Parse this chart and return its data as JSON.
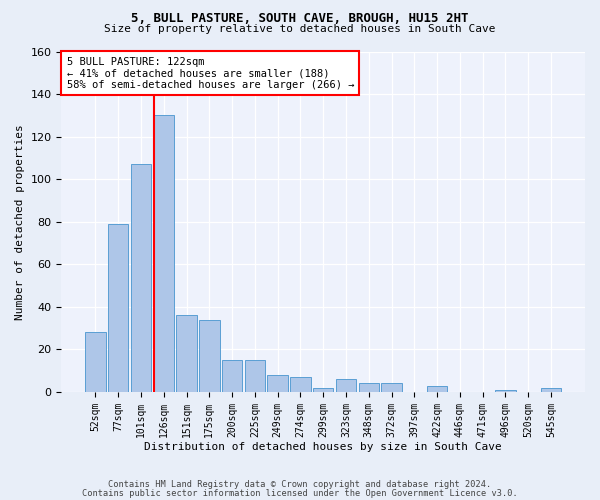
{
  "title1": "5, BULL PASTURE, SOUTH CAVE, BROUGH, HU15 2HT",
  "title2": "Size of property relative to detached houses in South Cave",
  "xlabel": "Distribution of detached houses by size in South Cave",
  "ylabel": "Number of detached properties",
  "bins": [
    "52sqm",
    "77sqm",
    "101sqm",
    "126sqm",
    "151sqm",
    "175sqm",
    "200sqm",
    "225sqm",
    "249sqm",
    "274sqm",
    "299sqm",
    "323sqm",
    "348sqm",
    "372sqm",
    "397sqm",
    "422sqm",
    "446sqm",
    "471sqm",
    "496sqm",
    "520sqm",
    "545sqm"
  ],
  "values": [
    28,
    79,
    107,
    130,
    36,
    34,
    15,
    15,
    8,
    7,
    2,
    6,
    4,
    4,
    0,
    3,
    0,
    0,
    1,
    0,
    2
  ],
  "bar_color": "#aec6e8",
  "bar_edge_color": "#5a9fd4",
  "vline_index": 3,
  "vline_color": "red",
  "annotation_line1": "5 BULL PASTURE: 122sqm",
  "annotation_line2": "← 41% of detached houses are smaller (188)",
  "annotation_line3": "58% of semi-detached houses are larger (266) →",
  "annotation_box_color": "white",
  "annotation_box_edge": "red",
  "ylim": [
    0,
    160
  ],
  "yticks": [
    0,
    20,
    40,
    60,
    80,
    100,
    120,
    140,
    160
  ],
  "footer1": "Contains HM Land Registry data © Crown copyright and database right 2024.",
  "footer2": "Contains public sector information licensed under the Open Government Licence v3.0.",
  "bg_color": "#e8eef8",
  "plot_bg_color": "#eef2fc"
}
